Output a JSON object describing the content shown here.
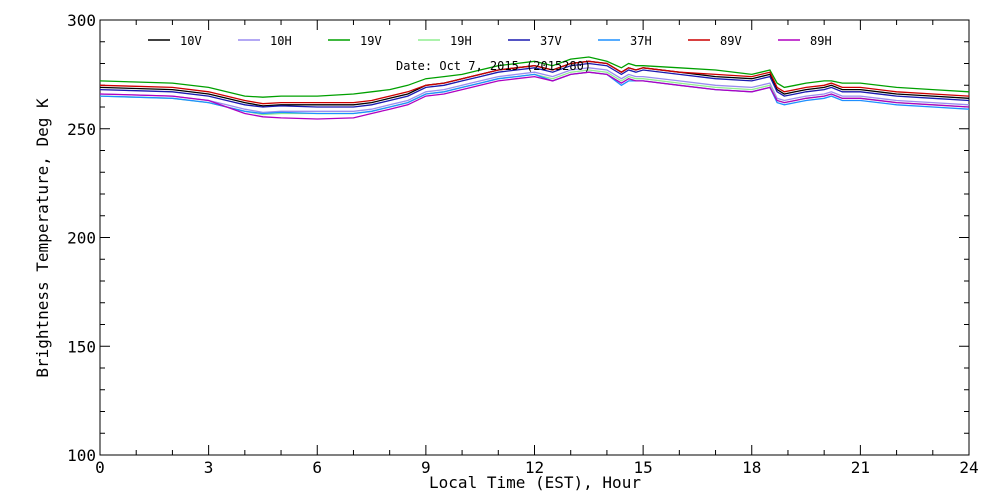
{
  "chart_data": {
    "type": "line",
    "title": "",
    "annotation": "Date: Oct  7, 2015 (2015280)",
    "xlabel": "Local Time (EST), Hour",
    "ylabel": "Brightness Temperature, Deg K",
    "xlim": [
      0,
      24
    ],
    "ylim": [
      100,
      300
    ],
    "xticks": [
      0,
      3,
      6,
      9,
      12,
      15,
      18,
      21,
      24
    ],
    "yticks": [
      100,
      150,
      200,
      250,
      300
    ],
    "grid": false,
    "legend_position": "top",
    "x": [
      0,
      1,
      2,
      3,
      3.5,
      4,
      4.5,
      5,
      6,
      7,
      7.5,
      8,
      8.5,
      9,
      9.5,
      10,
      10.5,
      11,
      11.5,
      12,
      12.5,
      13,
      13.5,
      14,
      14.4,
      14.6,
      14.8,
      15,
      16,
      17,
      18,
      18.5,
      18.7,
      18.9,
      19.2,
      19.5,
      20,
      20.2,
      20.5,
      21,
      22,
      23,
      24
    ],
    "series": [
      {
        "name": "10V",
        "color": "#000000",
        "values": [
          269,
          268.5,
          268,
          266,
          264,
          262,
          260.5,
          261,
          261,
          261,
          262,
          264,
          266,
          270,
          271,
          273,
          275,
          277,
          278,
          279,
          277,
          280,
          281,
          280,
          276,
          278,
          277,
          278,
          276,
          274,
          273,
          275,
          268,
          266,
          267,
          268,
          269,
          270,
          268,
          268,
          266,
          265,
          264
        ]
      },
      {
        "name": "10H",
        "color": "#9a8cf0",
        "values": [
          266,
          265.5,
          265,
          263,
          261,
          259,
          257.5,
          258,
          258,
          258,
          259,
          261,
          263,
          267,
          268,
          270,
          272,
          274,
          275,
          276,
          274,
          277,
          278,
          277,
          273,
          275,
          274,
          274,
          272,
          270,
          269,
          271,
          264,
          263,
          264,
          265,
          266,
          267,
          265,
          265,
          263,
          262,
          261
        ]
      },
      {
        "name": "19V",
        "color": "#00a000",
        "values": [
          272,
          271.5,
          271,
          269,
          267,
          265,
          264.5,
          265,
          265,
          266,
          267,
          268,
          270,
          273,
          274,
          275,
          277,
          279,
          280,
          281,
          279,
          282,
          283,
          281,
          278,
          280,
          279,
          279,
          278,
          277,
          275,
          277,
          271,
          269,
          270,
          271,
          272,
          272,
          271,
          271,
          269,
          268,
          267
        ]
      },
      {
        "name": "19H",
        "color": "#90ee90",
        "values": [
          265,
          264.5,
          264,
          262,
          260,
          258,
          256.5,
          257,
          257,
          257,
          258,
          260,
          262,
          266,
          267,
          269,
          271,
          273,
          274,
          275,
          273,
          276,
          277,
          276,
          272,
          274,
          273,
          273,
          271,
          269,
          268,
          270,
          263,
          262,
          263,
          264,
          265,
          266,
          264,
          264,
          262,
          261,
          260
        ]
      },
      {
        "name": "37V",
        "color": "#1a1ab0",
        "values": [
          268,
          267.5,
          267,
          265,
          263,
          261,
          260,
          260.5,
          260,
          260,
          261,
          263,
          265,
          269,
          270,
          272,
          274,
          276,
          277,
          278,
          276,
          279,
          280,
          279,
          275,
          277,
          276,
          277,
          275,
          273,
          272,
          274,
          267,
          265,
          266,
          267,
          268,
          269,
          267,
          267,
          265,
          264,
          263
        ]
      },
      {
        "name": "37H",
        "color": "#1e90ff",
        "values": [
          265,
          264.5,
          264,
          262,
          260,
          258,
          257,
          257.5,
          257,
          257,
          258,
          260,
          262,
          266,
          267,
          269,
          271,
          273,
          274,
          275,
          272,
          275,
          276,
          275,
          270,
          272,
          272,
          272,
          270,
          268,
          267,
          269,
          262,
          261,
          262,
          263,
          264,
          265,
          263,
          263,
          261,
          260,
          259
        ]
      },
      {
        "name": "89V",
        "color": "#cc0000",
        "values": [
          270,
          269.5,
          269,
          267,
          265,
          263,
          261.5,
          262,
          262,
          262,
          263,
          265,
          267,
          270,
          271,
          273,
          275,
          277,
          278,
          279,
          277,
          280,
          281,
          280,
          276,
          278,
          277,
          278,
          276,
          275,
          274,
          276,
          269,
          267,
          268,
          269,
          270,
          271,
          269,
          269,
          267,
          266,
          265
        ]
      },
      {
        "name": "89H",
        "color": "#b000c0",
        "values": [
          266,
          265.5,
          265,
          263,
          260,
          257,
          255.5,
          255,
          254.5,
          255,
          257,
          259,
          261,
          265,
          266,
          268,
          270,
          272,
          273,
          274,
          272,
          275,
          276,
          275,
          271,
          273,
          272,
          272,
          270,
          268,
          267,
          269,
          263,
          262,
          263,
          264,
          265,
          266,
          264,
          264,
          262,
          261,
          260
        ]
      }
    ]
  }
}
